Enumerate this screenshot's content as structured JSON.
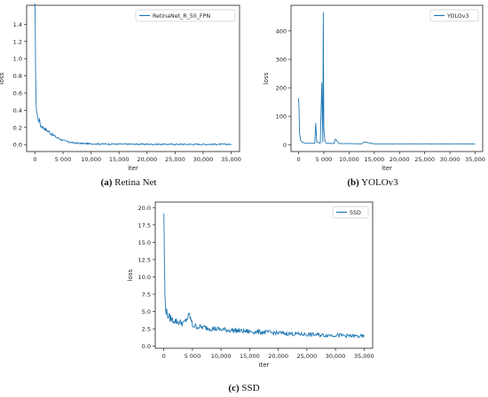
{
  "chart_data": [
    {
      "id": "a",
      "type": "line",
      "title": "",
      "caption_letter": "(a)",
      "caption_text": "Retina Net",
      "xlabel": "iter",
      "ylabel": "loss",
      "xlim": [
        -1500,
        36500
      ],
      "ylim": [
        -0.08,
        1.62
      ],
      "xticks": [
        0,
        5000,
        10000,
        15000,
        20000,
        25000,
        30000,
        35000
      ],
      "xtick_labels": [
        "0",
        "5 000",
        "10,000",
        "15,000",
        "20,000",
        "25,000",
        "30,000",
        "35,000"
      ],
      "yticks": [
        0.0,
        0.2,
        0.4,
        0.6,
        0.8,
        1.0,
        1.2,
        1.4
      ],
      "ytick_labels": [
        "0.0",
        "0.2",
        "0.4",
        "0.6",
        "0.8",
        "1.0",
        "1.2",
        "1.4"
      ],
      "legend_position": "top-right",
      "color": "#1f77b4",
      "series": [
        {
          "name": "RetinaNet_R_50_FPN",
          "x": [
            0,
            100,
            200,
            300,
            500,
            800,
            1000,
            1500,
            2000,
            2500,
            3000,
            4000,
            5000,
            6000,
            7000,
            8000,
            10000,
            12000,
            15000,
            20000,
            25000,
            30000,
            35000
          ],
          "values": [
            1.55,
            0.9,
            0.45,
            0.4,
            0.3,
            0.28,
            0.22,
            0.2,
            0.17,
            0.15,
            0.12,
            0.08,
            0.05,
            0.03,
            0.02,
            0.015,
            0.01,
            0.008,
            0.006,
            0.005,
            0.004,
            0.004,
            0.004
          ]
        }
      ]
    },
    {
      "id": "b",
      "type": "line",
      "title": "",
      "caption_letter": "(b)",
      "caption_text": "YOLOv3",
      "xlabel": "iter",
      "ylabel": "loss",
      "xlim": [
        -1500,
        36500
      ],
      "ylim": [
        -24,
        490
      ],
      "xticks": [
        0,
        5000,
        10000,
        15000,
        20000,
        25000,
        30000,
        35000
      ],
      "xtick_labels": [
        "0",
        "5 000",
        "10,000",
        "15,000",
        "20,000",
        "25,000",
        "30,000",
        "35,000"
      ],
      "yticks": [
        0,
        100,
        200,
        300,
        400
      ],
      "ytick_labels": [
        "0",
        "100",
        "200",
        "300",
        "400"
      ],
      "legend_position": "top-right",
      "color": "#1f77b4",
      "series": [
        {
          "name": "YOLOv3",
          "x": [
            0,
            100,
            200,
            400,
            800,
            1500,
            2500,
            3200,
            3400,
            3600,
            4300,
            4600,
            4800,
            4900,
            5000,
            5200,
            5500,
            6000,
            7000,
            7300,
            8000,
            10000,
            12500,
            13000,
            15000,
            20000,
            25000,
            30000,
            35000
          ],
          "values": [
            165,
            120,
            40,
            15,
            8,
            5,
            5,
            5,
            75,
            10,
            5,
            220,
            10,
            465,
            60,
            15,
            5,
            5,
            4,
            20,
            4,
            4,
            3,
            10,
            3,
            3,
            3,
            3,
            3
          ]
        }
      ]
    },
    {
      "id": "c",
      "type": "line",
      "title": "",
      "caption_letter": "(c)",
      "caption_text": "SSD",
      "xlabel": "iter",
      "ylabel": "loss",
      "xlim": [
        -1500,
        36500
      ],
      "ylim": [
        -0.3,
        20.8
      ],
      "xticks": [
        0,
        5000,
        10000,
        15000,
        20000,
        25000,
        30000,
        35000
      ],
      "xtick_labels": [
        "0",
        "5 000",
        "10,000",
        "15,000",
        "20,000",
        "25,000",
        "30,000",
        "35,000"
      ],
      "yticks": [
        0.0,
        2.5,
        5.0,
        7.5,
        10.0,
        12.5,
        15.0,
        17.5,
        20.0
      ],
      "ytick_labels": [
        "0.0",
        "2.5",
        "5.0",
        "7.5",
        "10.0",
        "12.5",
        "15.0",
        "17.5",
        "20.0"
      ],
      "legend_position": "top-right",
      "color": "#1f77b4",
      "series": [
        {
          "name": "SSD",
          "x": [
            0,
            100,
            200,
            400,
            800,
            1500,
            2500,
            3500,
            4500,
            5000,
            6000,
            8000,
            10000,
            12000,
            15000,
            18000,
            20000,
            22000,
            25000,
            28000,
            30000,
            32000,
            35000
          ],
          "values": [
            19.7,
            12.0,
            7.0,
            5.0,
            4.3,
            3.8,
            3.5,
            3.3,
            4.5,
            3.0,
            2.8,
            2.6,
            2.4,
            2.3,
            2.1,
            2.0,
            1.9,
            1.8,
            1.7,
            1.6,
            1.6,
            1.5,
            1.4
          ]
        }
      ]
    }
  ]
}
